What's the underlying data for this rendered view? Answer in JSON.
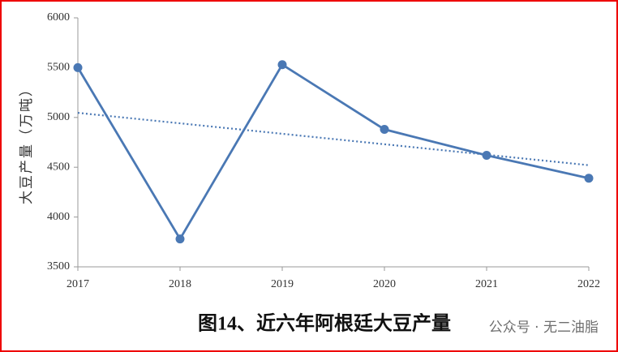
{
  "chart_data": {
    "type": "line",
    "title": "图14、近六年阿根廷大豆产量",
    "y_label": "大豆产量（万吨）",
    "watermark": "公众号 · 无二油脂",
    "categories": [
      "2017",
      "2018",
      "2019",
      "2020",
      "2021",
      "2022"
    ],
    "series": [
      {
        "name": "大豆产量",
        "color": "#4a78b4",
        "values": [
          5500,
          3780,
          5530,
          4880,
          4620,
          4390
        ]
      }
    ],
    "trendline": true,
    "ylim": [
      3500,
      6000
    ],
    "yticks": [
      3500,
      4000,
      4500,
      5000,
      5500,
      6000
    ],
    "grid": false
  }
}
